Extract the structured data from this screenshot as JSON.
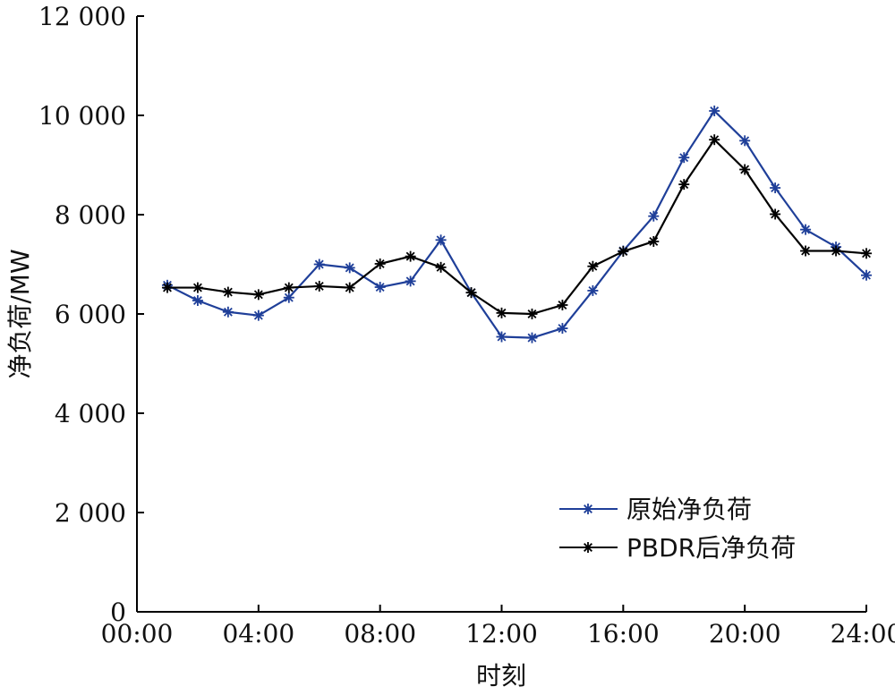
{
  "chart_data": {
    "type": "line",
    "title": "",
    "xlabel": "时刻",
    "ylabel": "净负荷/MW",
    "x": [
      1,
      2,
      3,
      4,
      5,
      6,
      7,
      8,
      9,
      10,
      11,
      12,
      13,
      14,
      15,
      16,
      17,
      18,
      19,
      20,
      21,
      22,
      23,
      24
    ],
    "xlim": [
      0,
      24
    ],
    "ylim": [
      0,
      12000
    ],
    "xticks": [
      0,
      4,
      8,
      12,
      16,
      20,
      24
    ],
    "xtick_labels": [
      "00:00",
      "04:00",
      "08:00",
      "12:00",
      "16:00",
      "20:00",
      "24:00"
    ],
    "yticks": [
      0,
      2000,
      4000,
      6000,
      8000,
      10000,
      12000
    ],
    "ytick_labels": [
      "0",
      "2 000",
      "4 000",
      "6 000",
      "8 000",
      "10 000",
      "12 000"
    ],
    "grid": false,
    "legend_position": "bottom-right",
    "series": [
      {
        "name": "原始净负荷",
        "color": "#1f3f99",
        "marker": "asterisk",
        "values": [
          6580,
          6270,
          6040,
          5970,
          6330,
          7000,
          6930,
          6540,
          6660,
          7490,
          6430,
          5540,
          5520,
          5710,
          6470,
          7270,
          7970,
          9150,
          10090,
          9490,
          8540,
          7700,
          7350,
          6780
        ]
      },
      {
        "name": "PBDR后净负荷",
        "color": "#000000",
        "marker": "asterisk",
        "values": [
          6530,
          6530,
          6440,
          6390,
          6530,
          6560,
          6530,
          7010,
          7160,
          6940,
          6430,
          6020,
          6000,
          6180,
          6960,
          7260,
          7460,
          8610,
          9510,
          8910,
          8010,
          7270,
          7270,
          7220
        ]
      }
    ]
  }
}
